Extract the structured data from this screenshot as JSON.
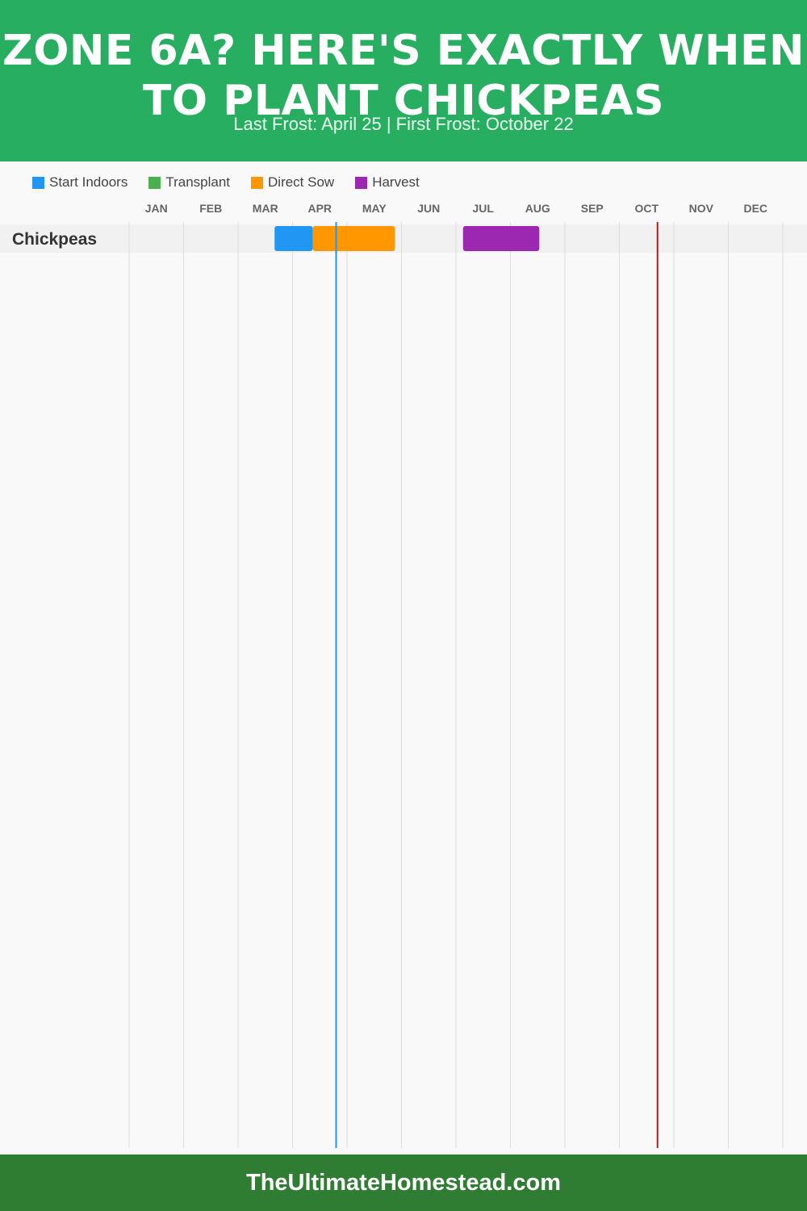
{
  "header": {
    "title": "ZONE 6A? HERE'S EXACTLY WHEN TO PLANT CHICKPEAS",
    "subtitle": "Last Frost: April 25 | First Frost: October 22"
  },
  "footer": {
    "site": "TheUltimateHomestead.com"
  },
  "colors": {
    "header_bg": "#27ae60",
    "footer_bg": "#2e7d32",
    "start_indoors": "#2196f3",
    "transplant": "#4caf50",
    "direct_sow": "#ff9800",
    "harvest": "#9c27b0",
    "last_frost_line": "#2196f3",
    "first_frost_line": "#b71c1c"
  },
  "chart_data": {
    "type": "gantt",
    "months": [
      "JAN",
      "FEB",
      "MAR",
      "APR",
      "MAY",
      "JUN",
      "JUL",
      "AUG",
      "SEP",
      "OCT",
      "NOV",
      "DEC"
    ],
    "legend": [
      {
        "key": "start_indoors",
        "label": "Start Indoors"
      },
      {
        "key": "transplant",
        "label": "Transplant"
      },
      {
        "key": "direct_sow",
        "label": "Direct Sow"
      },
      {
        "key": "harvest",
        "label": "Harvest"
      }
    ],
    "frost_markers": [
      {
        "key": "last_frost",
        "date": "April 25",
        "month_value": 3.8
      },
      {
        "key": "first_frost",
        "date": "October 22",
        "month_value": 9.7
      }
    ],
    "crops": [
      {
        "name": "Chickpeas",
        "periods": [
          {
            "type": "start_indoors",
            "start": 2.67,
            "end": 3.37
          },
          {
            "type": "direct_sow",
            "start": 3.37,
            "end": 4.88
          },
          {
            "type": "harvest",
            "start": 6.13,
            "end": 7.53
          }
        ]
      }
    ]
  }
}
